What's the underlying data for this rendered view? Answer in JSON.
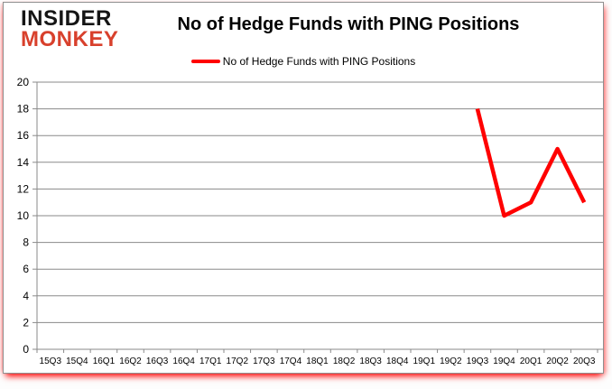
{
  "logo": {
    "line1": "INSIDER",
    "line2": "MONKEY"
  },
  "title": "No of Hedge Funds with PING Positions",
  "legend": {
    "label": "No of Hedge Funds with PING Positions",
    "color": "#ff0000"
  },
  "colors": {
    "series_red": "#ff0000",
    "gridline": "#8a8a8a",
    "axis_text": "#000000",
    "logo_black": "#151515",
    "logo_red": "#d8402c",
    "panel_border": "#8f8f8f",
    "panel_shadow_red": "#ff0000"
  },
  "chart_data": {
    "type": "line",
    "title": "No of Hedge Funds with PING Positions",
    "categories": [
      "15Q3",
      "15Q4",
      "16Q1",
      "16Q2",
      "16Q3",
      "16Q4",
      "17Q1",
      "17Q2",
      "17Q3",
      "17Q4",
      "18Q1",
      "18Q2",
      "18Q3",
      "18Q4",
      "19Q1",
      "19Q2",
      "19Q3",
      "19Q4",
      "20Q1",
      "20Q2",
      "20Q3"
    ],
    "series": [
      {
        "name": "No of Hedge Funds with PING Positions",
        "color": "#ff0000",
        "values": [
          null,
          null,
          null,
          null,
          null,
          null,
          null,
          null,
          null,
          null,
          null,
          null,
          null,
          null,
          null,
          null,
          18,
          10,
          11,
          15,
          11
        ]
      }
    ],
    "xlabel": "",
    "ylabel": "",
    "ylim": [
      0,
      20
    ],
    "ytick_step": 2,
    "grid": true,
    "legend_position": "top"
  }
}
